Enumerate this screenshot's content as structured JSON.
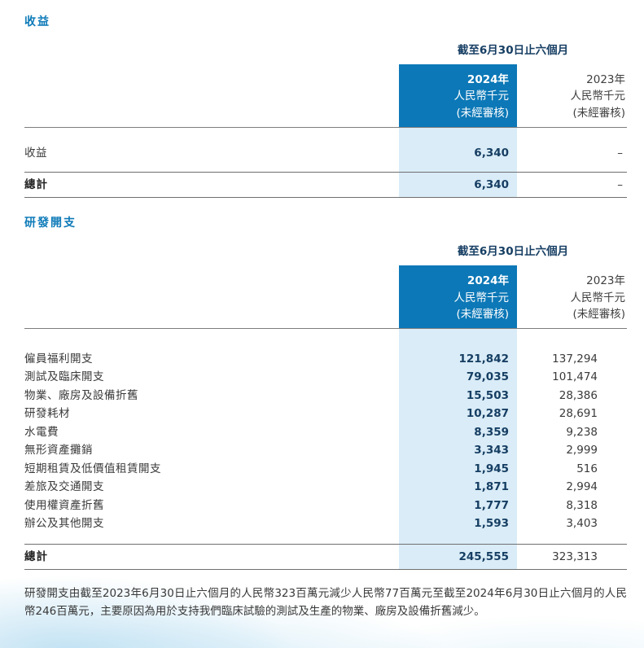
{
  "colors": {
    "accent_blue": "#0c78b7",
    "highlight_column": "#d9ecf7",
    "value_navy": "#163e63"
  },
  "revenue": {
    "title": "收益",
    "period": "截至6月30日止六個月",
    "col2024": {
      "year": "2024年",
      "currency": "人民幣千元",
      "audit": "(未經審核)"
    },
    "col2023": {
      "year": "2023年",
      "currency": "人民幣千元",
      "audit": "(未經審核)"
    },
    "rows": [
      {
        "label": "收益",
        "y2024": "6,340",
        "y2023": "–"
      }
    ],
    "total": {
      "label": "總計",
      "y2024": "6,340",
      "y2023": "–"
    }
  },
  "rnd": {
    "title": "研發開支",
    "period": "截至6月30日止六個月",
    "col2024": {
      "year": "2024年",
      "currency": "人民幣千元",
      "audit": "(未經審核)"
    },
    "col2023": {
      "year": "2023年",
      "currency": "人民幣千元",
      "audit": "(未經審核)"
    },
    "rows": [
      {
        "label": "僱員福利開支",
        "y2024": "121,842",
        "y2023": "137,294"
      },
      {
        "label": "測試及臨床開支",
        "y2024": "79,035",
        "y2023": "101,474"
      },
      {
        "label": "物業、廠房及設備折舊",
        "y2024": "15,503",
        "y2023": "28,386"
      },
      {
        "label": "研發耗材",
        "y2024": "10,287",
        "y2023": "28,691"
      },
      {
        "label": "水電費",
        "y2024": "8,359",
        "y2023": "9,238"
      },
      {
        "label": "無形資產攤銷",
        "y2024": "3,343",
        "y2023": "2,999"
      },
      {
        "label": "短期租賃及低價值租賃開支",
        "y2024": "1,945",
        "y2023": "516"
      },
      {
        "label": "差旅及交通開支",
        "y2024": "1,871",
        "y2023": "2,994"
      },
      {
        "label": "使用權資產折舊",
        "y2024": "1,777",
        "y2023": "8,318"
      },
      {
        "label": "辦公及其他開支",
        "y2024": "1,593",
        "y2023": "3,403"
      }
    ],
    "total": {
      "label": "總計",
      "y2024": "245,555",
      "y2023": "323,313"
    }
  },
  "footnote": "研發開支由截至2023年6月30日止六個月的人民幣323百萬元減少人民幣77百萬元至截至2024年6月30日止六個月的人民幣246百萬元，主要原因為用於支持我們臨床試驗的測試及生產的物業、廠房及設備折舊減少。"
}
